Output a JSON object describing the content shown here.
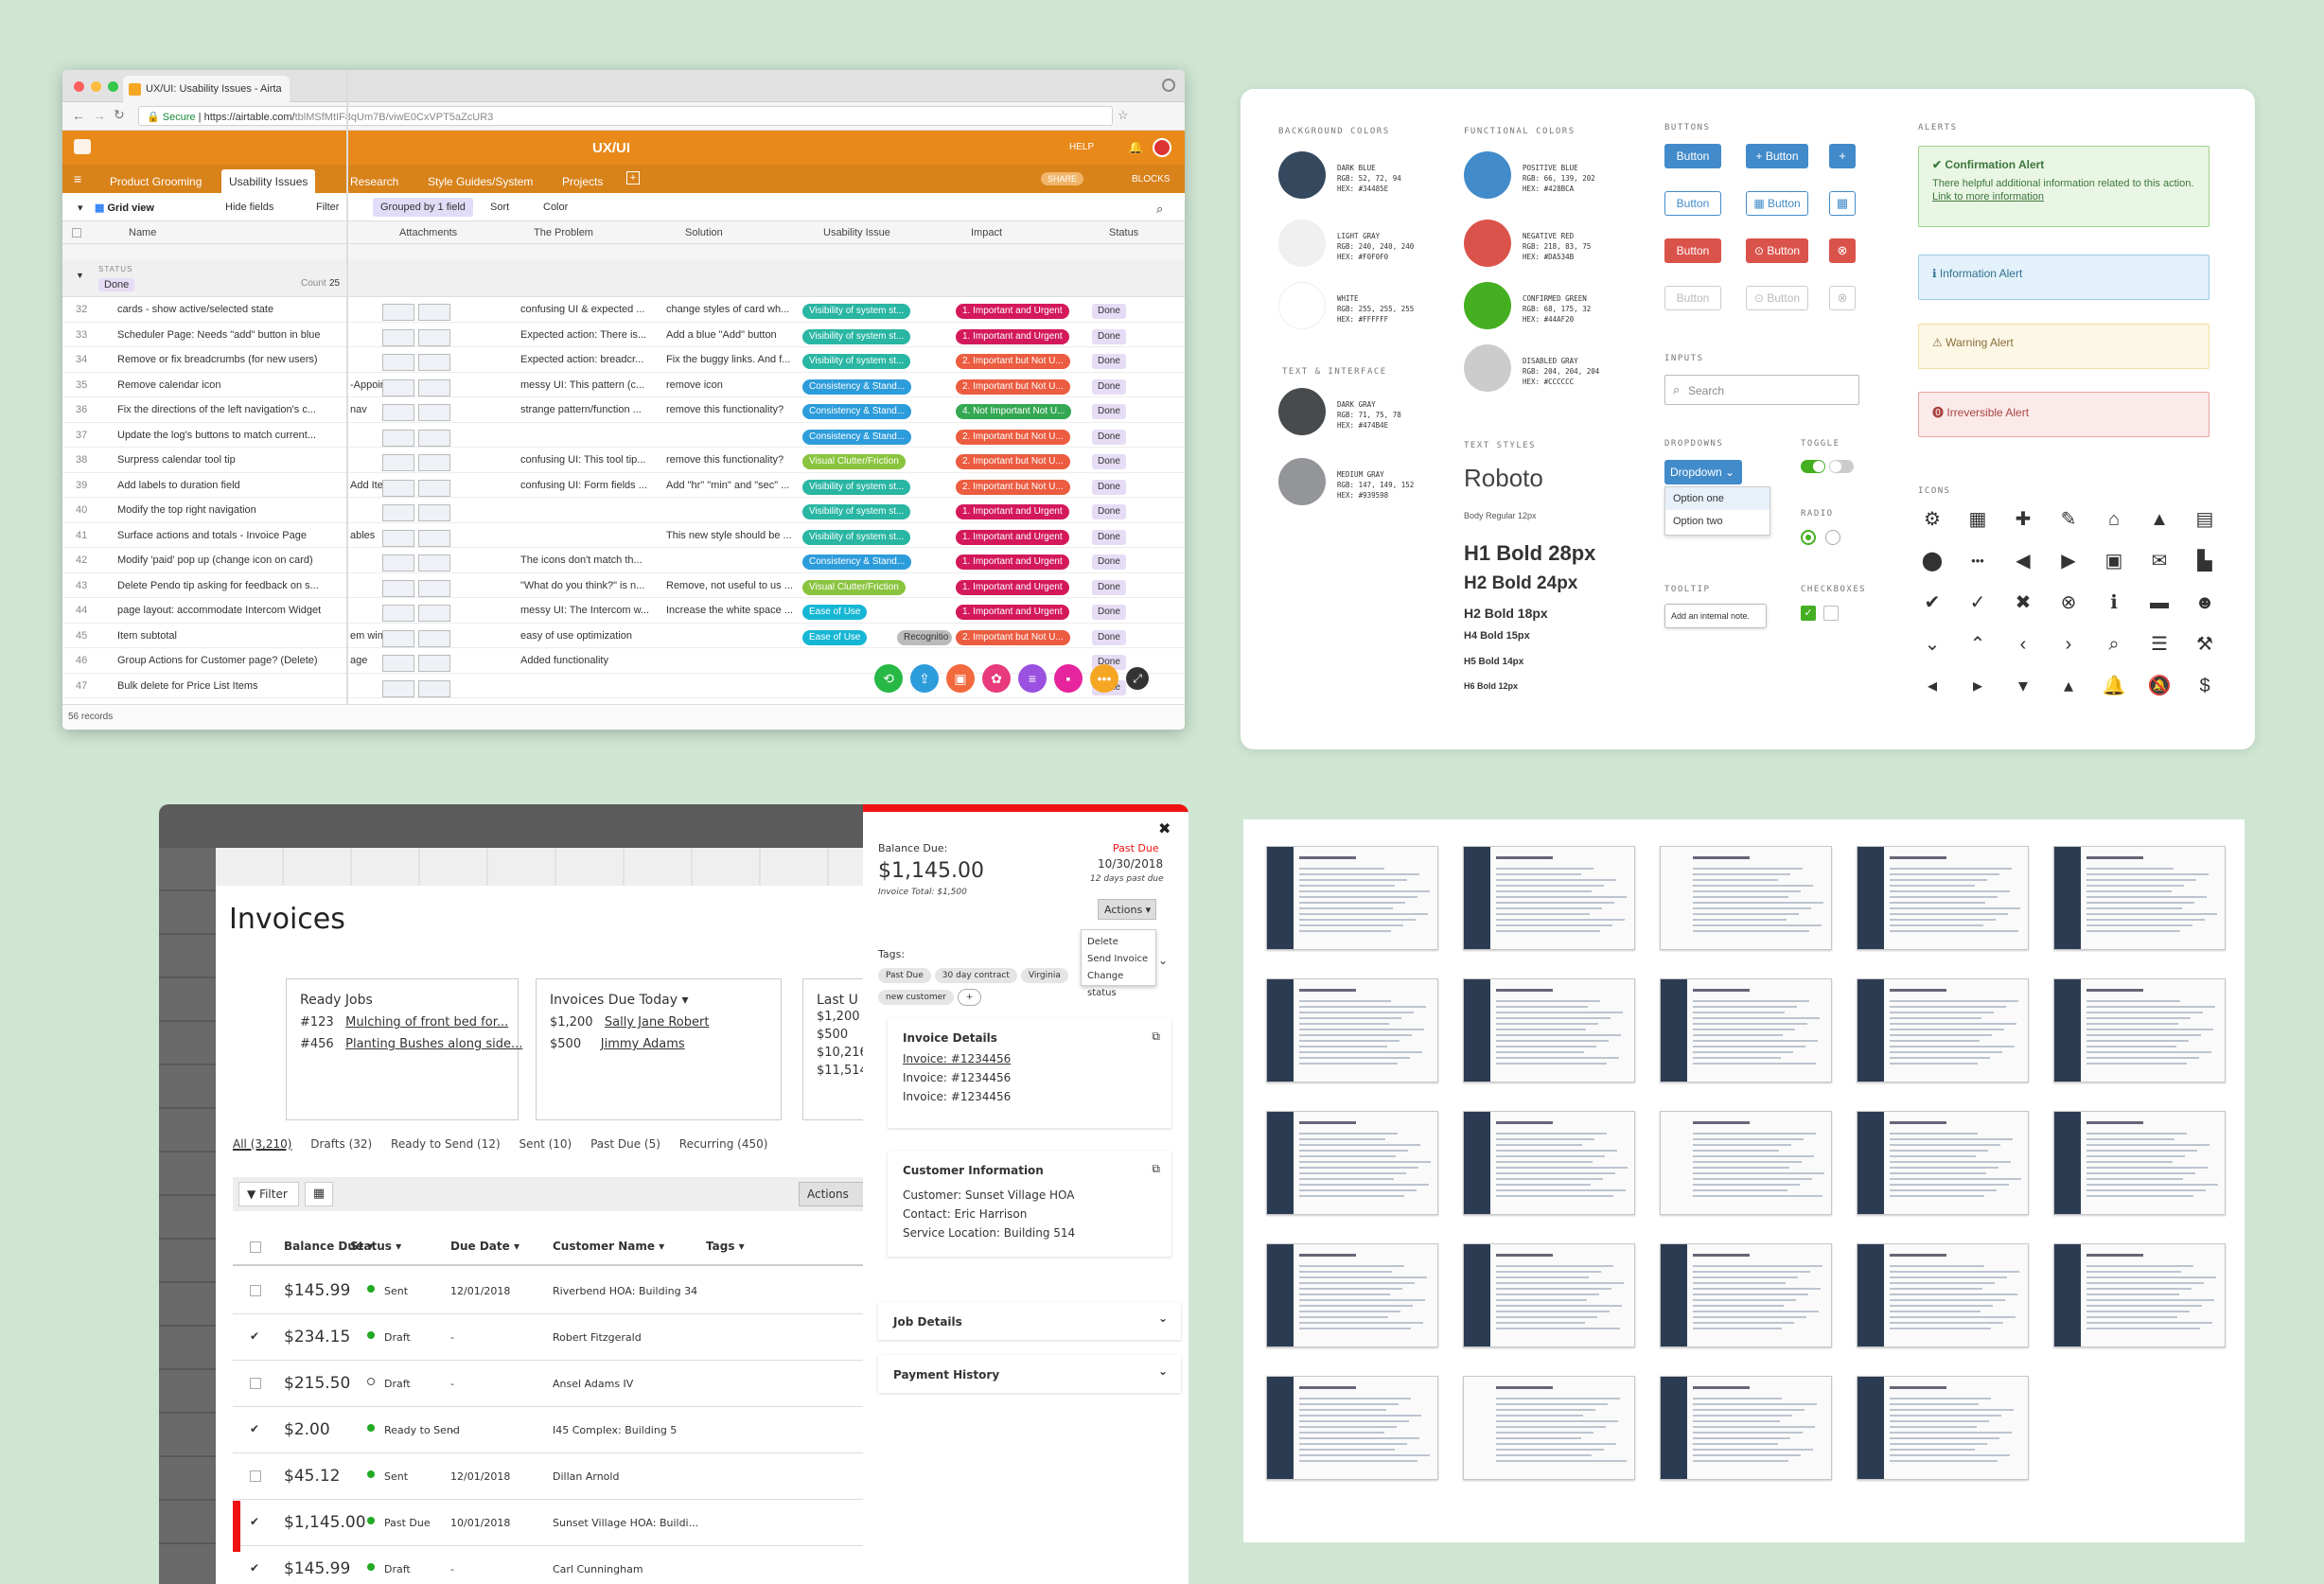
{
  "airtable": {
    "tab_title": "UX/UI: Usability Issues - Airta",
    "secure": "Secure",
    "url_main": "https://airtable.com/",
    "url_rest": "tblMSfMtIF8qUm7B/viwE0CxVPT5aZcUR3",
    "base_title": "UX/UI",
    "help": "HELP",
    "tables": [
      "Product Grooming",
      "Usability Issues",
      "Research",
      "Style Guides/System",
      "Projects"
    ],
    "share": "SHARE",
    "blocks": "BLOCKS",
    "toolbar": {
      "view": "Grid view",
      "hide": "Hide fields",
      "filter": "Filter",
      "grouped": "Grouped by 1 field",
      "sort": "Sort",
      "color": "Color"
    },
    "columns": [
      "Name",
      "Attachments",
      "The Problem",
      "Solution",
      "Usability Issue",
      "Impact",
      "Status"
    ],
    "group_label": "STATUS",
    "group_value": "Done",
    "count_label": "Count",
    "count_value": "25",
    "rows": [
      {
        "n": "32",
        "name": "cards - show active/selected state",
        "extra": "",
        "problem": "confusing UI & expected ...",
        "solution": "change styles of card wh...",
        "issue": "Visibility of system st...",
        "impact": "1. Important and Urgent",
        "status": "Done"
      },
      {
        "n": "33",
        "name": "Scheduler Page: Needs \"add\" button in blue",
        "extra": "",
        "problem": "Expected action: There is...",
        "solution": "Add a blue \"Add\" button",
        "issue": "Visibility of system st...",
        "impact": "1. Important and Urgent",
        "status": "Done"
      },
      {
        "n": "34",
        "name": "Remove or fix breadcrumbs (for new users)",
        "extra": "",
        "problem": "Expected action: breadcr...",
        "solution": "Fix the buggy links. And f...",
        "issue": "Visibility of system st...",
        "impact": "2. Important but Not U...",
        "status": "Done"
      },
      {
        "n": "35",
        "name": "Remove calendar icon",
        "extra": "-Appoin...",
        "problem": "messy UI: This pattern (c...",
        "solution": "remove icon",
        "issue": "Consistency & Stand...",
        "impact": "2. Important but Not U...",
        "status": "Done"
      },
      {
        "n": "36",
        "name": "Fix the directions of the left navigation's c...",
        "extra": "nav",
        "problem": "strange pattern/function ...",
        "solution": "remove this functionality?",
        "issue": "Consistency & Stand...",
        "impact": "4. Not Important Not U...",
        "status": "Done"
      },
      {
        "n": "37",
        "name": "Update the log's buttons to match current...",
        "extra": "",
        "problem": "",
        "solution": "",
        "issue": "Consistency & Stand...",
        "impact": "2. Important but Not U...",
        "status": "Done"
      },
      {
        "n": "38",
        "name": "Surpress calendar tool tip",
        "extra": "",
        "problem": "confusing UI: This tool tip...",
        "solution": "remove this functionality?",
        "issue": "Visual Clutter/Friction",
        "impact": "2. Important but Not U...",
        "status": "Done"
      },
      {
        "n": "39",
        "name": "Add labels to duration field",
        "extra": "Add Item",
        "problem": "confusing UI: Form fields ...",
        "solution": "Add \"hr\" \"min\" and \"sec\" ...",
        "issue": "Visibility of system st...",
        "impact": "2. Important but Not U...",
        "status": "Done"
      },
      {
        "n": "40",
        "name": "Modify the top right navigation",
        "extra": "",
        "problem": "",
        "solution": "",
        "issue": "Visibility of system st...",
        "impact": "1. Important and Urgent",
        "status": "Done"
      },
      {
        "n": "41",
        "name": "Surface actions and totals - Invoice Page",
        "extra": "ables",
        "problem": "",
        "solution": "This new style should be ...",
        "issue": "Visibility of system st...",
        "impact": "1. Important and Urgent",
        "status": "Done"
      },
      {
        "n": "42",
        "name": "Modify 'paid' pop up (change icon on card)",
        "extra": "",
        "problem": "The icons don't match th...",
        "solution": "",
        "issue": "Consistency & Stand...",
        "impact": "1. Important and Urgent",
        "status": "Done"
      },
      {
        "n": "43",
        "name": "Delete Pendo tip asking for feedback on s...",
        "extra": "",
        "problem": "\"What do you think?\" is n...",
        "solution": "Remove, not useful to us ...",
        "issue": "Visual Clutter/Friction",
        "impact": "1. Important and Urgent",
        "status": "Done"
      },
      {
        "n": "44",
        "name": "page layout: accommodate Intercom Widget",
        "extra": "",
        "problem": "messy UI: The Intercom w...",
        "solution": "Increase the white space ...",
        "issue": "Ease of Use",
        "impact": "1. Important and Urgent",
        "status": "Done"
      },
      {
        "n": "45",
        "name": "Item subtotal",
        "extra": "em win...",
        "problem": "easy of use optimization",
        "solution": "",
        "issue": "Ease of Use",
        "impact": "2. Important but Not U...",
        "status": "Done"
      },
      {
        "n": "46",
        "name": "Group Actions for Customer page? (Delete)",
        "extra": "age",
        "problem": "Added functionality",
        "solution": "",
        "issue": "",
        "impact": "",
        "status": "Done"
      },
      {
        "n": "47",
        "name": "Bulk delete for Price List Items",
        "extra": "",
        "problem": "",
        "solution": "",
        "issue": "",
        "impact": "",
        "status": "Done"
      }
    ],
    "recognition_tag": "Recognitio",
    "records": "56 records"
  },
  "style_guide": {
    "bg_title": "BACKGROUND COLORS",
    "fn_title": "FUNCTIONAL COLORS",
    "text_title": "TEXT & INTERFACE",
    "buttons_title": "BUTTONS",
    "alerts_title": "ALERTS",
    "inputs_title": "INPUTS",
    "dropdowns_title": "DROPDOWNS",
    "toggle_title": "TOGGLE",
    "radio_title": "RADIO",
    "tooltip_title": "TOOLTIP",
    "checkboxes_title": "CHECKBOXES",
    "text_styles_title": "TEXT STYLES",
    "icons_title": "ICONS",
    "colors": [
      {
        "name": "DARK BLUE",
        "rgb": "RGB: 52, 72, 94",
        "hex": "HEX: #34485E",
        "color": "#34485E"
      },
      {
        "name": "LIGHT GRAY",
        "rgb": "RGB: 240, 240, 240",
        "hex": "HEX: #F0F0F0",
        "color": "#F0F0F0"
      },
      {
        "name": "WHITE",
        "rgb": "RGB: 255, 255, 255",
        "hex": "HEX: #FFFFFF",
        "color": "#FFFFFF"
      },
      {
        "name": "POSITIVE BLUE",
        "rgb": "RGB: 66, 139, 202",
        "hex": "HEX: #428BCA",
        "color": "#428BCA"
      },
      {
        "name": "NEGATIVE RED",
        "rgb": "RGB: 218, 83, 75",
        "hex": "HEX: #DA534B",
        "color": "#DA534B"
      },
      {
        "name": "CONFIRMED GREEN",
        "rgb": "RGB: 68, 175, 32",
        "hex": "HEX: #44AF20",
        "color": "#44AF20"
      },
      {
        "name": "DISABLED GRAY",
        "rgb": "RGB: 204, 204, 204",
        "hex": "HEX: #CCCCCC",
        "color": "#CCCCCC"
      },
      {
        "name": "DARK GRAY",
        "rgb": "RGB: 71, 75, 78",
        "hex": "HEX: #474B4E",
        "color": "#474B4E"
      },
      {
        "name": "MEDIUM GRAY",
        "rgb": "RGB: 147, 149, 152",
        "hex": "HEX: #939598",
        "color": "#939598"
      }
    ],
    "button_label": "Button",
    "search_placeholder": "Search",
    "dropdown_label": "Dropdown",
    "dropdown_options": [
      "Option one",
      "Option two"
    ],
    "tooltip_text": "Add an internal note.",
    "font_name": "Roboto",
    "body_style": "Body Regular 12px",
    "headings": [
      "H1 Bold 28px",
      "H2 Bold 24px",
      "H2 Bold 18px",
      "H4 Bold 15px",
      "H5 Bold 14px",
      "H6 Bold 12px"
    ],
    "alerts": {
      "confirm_title": "Confirmation Alert",
      "confirm_body": "There helpful additional information related to this action.",
      "confirm_link": "Link to more information",
      "info": "Information Alert",
      "warning": "Warning Alert",
      "irreversible": "Irreversible Alert"
    }
  },
  "invoices": {
    "title": "Invoices",
    "ready_jobs": {
      "title": "Ready Jobs",
      "rows": [
        {
          "id": "#123",
          "desc": "Mulching of front bed for..."
        },
        {
          "id": "#456",
          "desc": "Planting Bushes along side..."
        }
      ]
    },
    "due_today": {
      "title": "Invoices Due Today",
      "rows": [
        {
          "amount": "$1,200",
          "name": "Sally Jane Robert"
        },
        {
          "amount": "$500",
          "name": "Jimmy Adams"
        }
      ]
    },
    "last": {
      "title": "Last U",
      "rows": [
        "$1,200",
        "$500",
        "$10,216",
        "$11,514"
      ]
    },
    "tabs": [
      "All (3,210)",
      "Drafts (32)",
      "Ready to Send (12)",
      "Sent (10)",
      "Past Due (5)",
      "Recurring (450)"
    ],
    "filter": "Filter",
    "actions": "Actions",
    "columns": [
      "Balance Due",
      "Status",
      "Due Date",
      "Customer Name",
      "Tags"
    ],
    "rows": [
      {
        "amount": "$145.99",
        "status": "Sent",
        "due": "12/01/2018",
        "customer": "Riverbend HOA: Building 34"
      },
      {
        "amount": "$234.15",
        "status": "Draft",
        "due": "-",
        "customer": "Robert Fitzgerald"
      },
      {
        "amount": "$215.50",
        "status": "Draft",
        "due": "-",
        "customer": "Ansel Adams IV"
      },
      {
        "amount": "$2.00",
        "status": "Ready to Send",
        "due": "-",
        "customer": "I45 Complex: Building 5"
      },
      {
        "amount": "$45.12",
        "status": "Sent",
        "due": "12/01/2018",
        "customer": "Dillan Arnold"
      },
      {
        "amount": "$1,145.00",
        "status": "Past Due",
        "due": "10/01/2018",
        "customer": "Sunset Village HOA: Buildi..."
      },
      {
        "amount": "$145.99",
        "status": "Draft",
        "due": "-",
        "customer": "Carl Cunningham"
      }
    ],
    "side": {
      "balance_label": "Balance Due:",
      "balance": "$1,145.00",
      "total": "Invoice Total: $1,500",
      "past_due": "Past Due",
      "date": "10/30/2018",
      "days": "12 days past due",
      "actions": "Actions",
      "menu": [
        "Delete",
        "Send Invoice",
        "Change status"
      ],
      "tags_label": "Tags:",
      "tags": [
        "Past Due",
        "30 day contract",
        "Virginia",
        "new customer"
      ],
      "details_title": "Invoice Details",
      "details": [
        "Invoice: #1234456",
        "Invoice: #1234456",
        "Invoice: #1234456"
      ],
      "customer_title": "Customer Information",
      "customer": [
        "Customer: Sunset Village HOA",
        "Contact: Eric Harrison",
        "Service Location: Building 514"
      ],
      "job_details": "Job Details",
      "payment_history": "Payment History"
    }
  }
}
